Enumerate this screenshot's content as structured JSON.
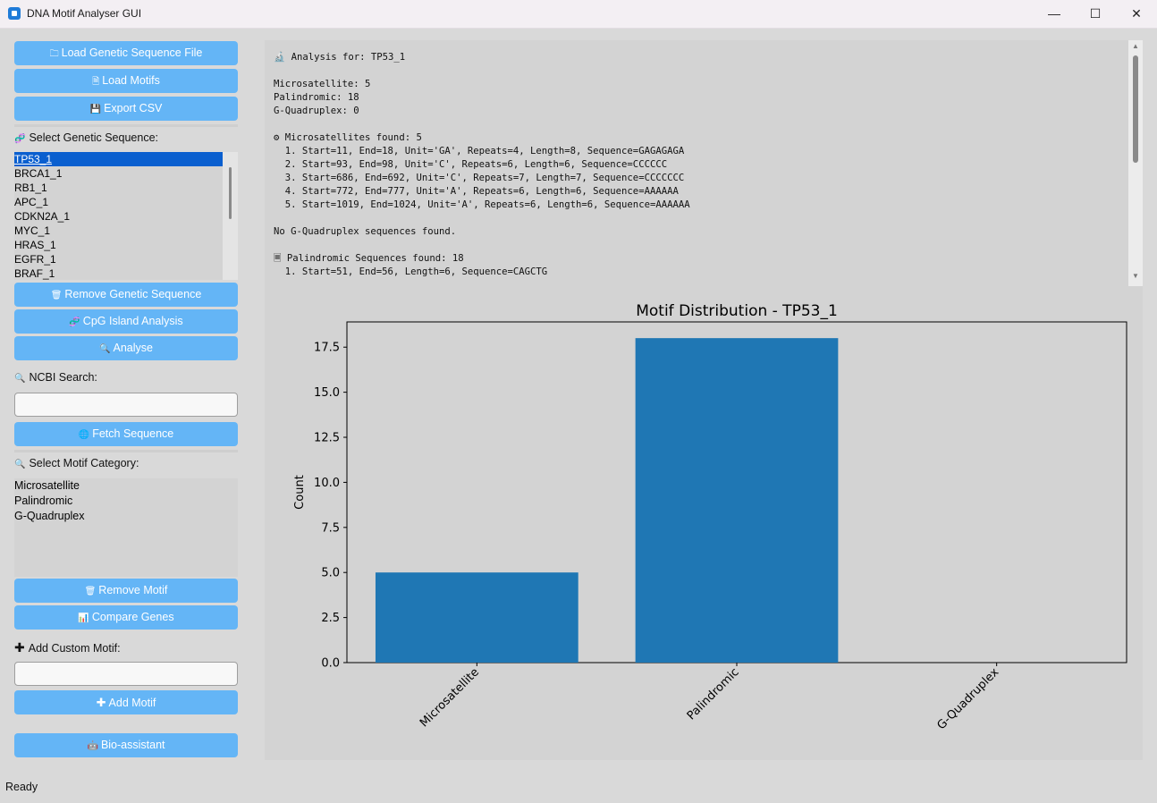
{
  "window": {
    "title": "DNA Motif Analyser GUI",
    "min": "—",
    "max": "☐",
    "close": "✕"
  },
  "sidebar": {
    "load_file": "Load Genetic Sequence File",
    "load_motifs": "Load Motifs",
    "export_csv": "Export CSV",
    "select_seq_label": "Select Genetic Sequence:",
    "sequences": [
      "TP53_1",
      "BRCA1_1",
      "RB1_1",
      "APC_1",
      "CDKN2A_1",
      "MYC_1",
      "HRAS_1",
      "EGFR_1",
      "BRAF_1"
    ],
    "selected_sequence": "TP53_1",
    "remove_seq": "Remove Genetic Sequence",
    "cpg": "CpG Island Analysis",
    "analyse": "Analyse",
    "ncbi_label": "NCBI Search:",
    "ncbi_value": "",
    "fetch": "Fetch Sequence",
    "motif_cat_label": "Select Motif Category:",
    "motif_categories": [
      "Microsatellite",
      "Palindromic",
      "G-Quadruplex"
    ],
    "remove_motif": "Remove Motif",
    "compare": "Compare Genes",
    "custom_label": "Add Custom Motif:",
    "custom_value": "",
    "add_motif": "Add Motif",
    "bio_assistant": "Bio-assistant"
  },
  "icons": {
    "folder": "🗀",
    "doc": "🗎",
    "save": "💾",
    "dna": "🧬",
    "trash": "🗑",
    "search": "🔍",
    "globe": "🌐",
    "chart": "📊",
    "plus": "✚",
    "robot": "🤖",
    "gear": "⚙",
    "doc2": "🗏",
    "microscope": "🔬"
  },
  "results": {
    "lines": [
      "🔬 Analysis for: TP53_1",
      "",
      "Microsatellite: 5",
      "Palindromic: 18",
      "G-Quadruplex: 0",
      "",
      "⚙ Microsatellites found: 5",
      "  1. Start=11, End=18, Unit='GA', Repeats=4, Length=8, Sequence=GAGAGAGA",
      "  2. Start=93, End=98, Unit='C', Repeats=6, Length=6, Sequence=CCCCCC",
      "  3. Start=686, End=692, Unit='C', Repeats=7, Length=7, Sequence=CCCCCCC",
      "  4. Start=772, End=777, Unit='A', Repeats=6, Length=6, Sequence=AAAAAA",
      "  5. Start=1019, End=1024, Unit='A', Repeats=6, Length=6, Sequence=AAAAAA",
      "",
      "No G-Quadruplex sequences found.",
      "",
      "🗏 Palindromic Sequences found: 18",
      "  1. Start=51, End=56, Length=6, Sequence=CAGCTG"
    ]
  },
  "status": "Ready",
  "chart_data": {
    "type": "bar",
    "title": "Motif Distribution - TP53_1",
    "categories": [
      "Microsatellite",
      "Palindromic",
      "G-Quadruplex"
    ],
    "values": [
      5,
      18,
      0
    ],
    "ylabel": "Count",
    "xlabel": "",
    "ylim": [
      0,
      18.9
    ],
    "yticks": [
      "0.0",
      "2.5",
      "5.0",
      "7.5",
      "10.0",
      "12.5",
      "15.0",
      "17.5"
    ],
    "ytick_values": [
      0,
      2.5,
      5,
      7.5,
      10,
      12.5,
      15,
      17.5
    ],
    "color": "#1f77b4",
    "grid": false
  }
}
